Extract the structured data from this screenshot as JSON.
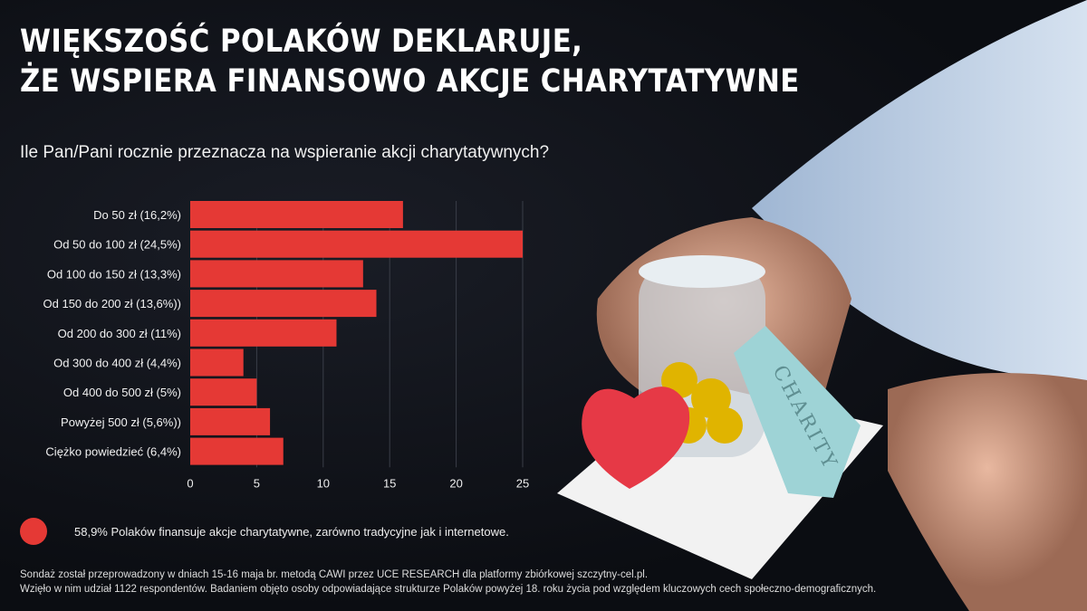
{
  "header": {
    "title_line1": "WIĘKSZOŚĆ POLAKÓW DEKLARUJE,",
    "title_line2": "ŻE WSPIERA FINANSOWO AKCJE CHARYTATYWNE"
  },
  "question": "Ile Pan/Pani rocznie przeznacza na wspieranie akcji charytatywnych?",
  "chart_data": {
    "type": "bar",
    "orientation": "horizontal",
    "title": "Ile Pan/Pani rocznie przeznacza na wspieranie akcji charytatywnych?",
    "categories": [
      "Do 50 zł (16,2%)",
      "Od 50 do 100 zł (24,5%)",
      "Od 100 do 150 zł (13,3%)",
      "Od 150 do 200 zł (13,6%))",
      "Od 200 do 300 zł (11%)",
      "Od 300 do 400 zł (4,4%)",
      "Od 400 do 500 zł (5%)",
      "Powyżej 500 zł (5,6%))",
      "Ciężko powiedzieć (6,4%)"
    ],
    "values": [
      16,
      25,
      13,
      14,
      11,
      4,
      5,
      6,
      7
    ],
    "xlim": [
      0,
      25
    ],
    "xticks": [
      "0",
      "5",
      "10",
      "15",
      "20",
      "25"
    ],
    "grid": true,
    "color": "#e53935"
  },
  "legend": {
    "text": "58,9% Polaków finansuje akcje charytatywne, zarówno tradycyjne jak i internetowe.",
    "color": "#e53935"
  },
  "footnote": {
    "line1": "Sondaż został przeprowadzony w dniach 15-16 maja br. metodą CAWI przez UCE RESEARCH dla platformy zbiórkowej szczytny-cel.pl.",
    "line2": "Wzięło w nim udział 1122 respondentów. Badaniem objęto osoby odpowiadające strukturze Polaków powyżej 18. roku życia pod względem kluczowych cech społeczno-demograficznych."
  },
  "photo": {
    "tag_text": "CHARITY"
  }
}
